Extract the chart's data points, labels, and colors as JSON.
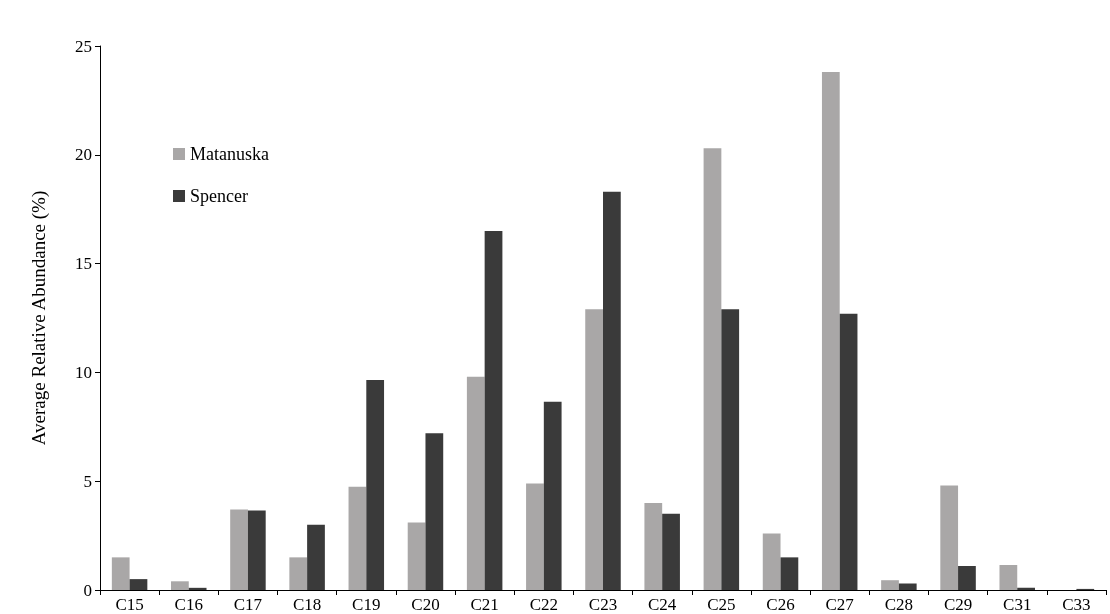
{
  "chart_data": {
    "type": "bar",
    "ylabel": "Average Relative Abundance (%)",
    "categories": [
      "C15",
      "C16",
      "C17",
      "C18",
      "C19",
      "C20",
      "C21",
      "C22",
      "C23",
      "C24",
      "C25",
      "C26",
      "C27",
      "C28",
      "C29",
      "C31",
      "C33"
    ],
    "series": [
      {
        "name": "Matanuska",
        "color": "#a9a7a7",
        "values": [
          1.5,
          0.4,
          3.7,
          1.5,
          4.75,
          3.1,
          9.8,
          4.9,
          12.9,
          4.0,
          20.3,
          2.6,
          23.8,
          0.45,
          4.8,
          1.15,
          null
        ]
      },
      {
        "name": "Spencer",
        "color": "#3a3a3a",
        "values": [
          0.5,
          0.1,
          3.65,
          3.0,
          9.65,
          7.2,
          16.5,
          8.65,
          18.3,
          3.5,
          12.9,
          1.5,
          12.7,
          0.3,
          1.1,
          0.1,
          0.05
        ]
      }
    ],
    "ylim": [
      0,
      25
    ],
    "yticks": [
      0,
      5,
      10,
      15,
      20,
      25
    ],
    "grid": false,
    "legend": "top left"
  }
}
